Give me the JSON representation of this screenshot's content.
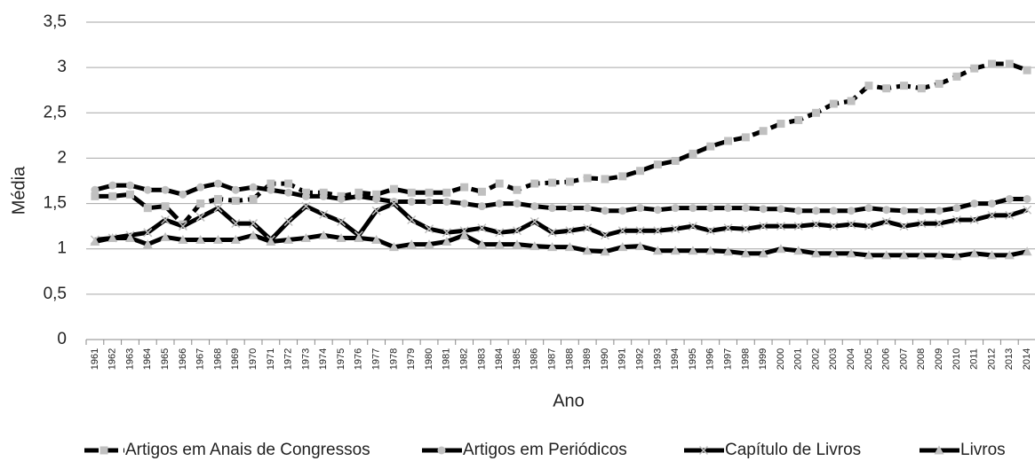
{
  "chart_data": {
    "type": "line",
    "x_label": "Ano",
    "y_label": "Média",
    "categories": [
      "1961",
      "1962",
      "1963",
      "1964",
      "1965",
      "1966",
      "1967",
      "1968",
      "1969",
      "1970",
      "1971",
      "1972",
      "1973",
      "1974",
      "1975",
      "1976",
      "1977",
      "1978",
      "1979",
      "1980",
      "1981",
      "1982",
      "1983",
      "1984",
      "1985",
      "1986",
      "1987",
      "1988",
      "1989",
      "1990",
      "1991",
      "1992",
      "1993",
      "1994",
      "1995",
      "1996",
      "1997",
      "1998",
      "1999",
      "2000",
      "2001",
      "2002",
      "2003",
      "2004",
      "2005",
      "2006",
      "2007",
      "2008",
      "2009",
      "2010",
      "2011",
      "2012",
      "2013",
      "2014"
    ],
    "series": [
      {
        "name": "Artigos em Anais de Congressos",
        "color": "#000000",
        "marker": "square",
        "marker_color": "#c0c0c0",
        "line_style": "dashed",
        "values": [
          1.58,
          1.58,
          1.6,
          1.45,
          1.47,
          1.27,
          1.5,
          1.55,
          1.53,
          1.55,
          1.72,
          1.72,
          1.62,
          1.62,
          1.58,
          1.62,
          1.6,
          1.66,
          1.62,
          1.62,
          1.62,
          1.68,
          1.63,
          1.72,
          1.65,
          1.72,
          1.73,
          1.74,
          1.78,
          1.77,
          1.8,
          1.86,
          1.93,
          1.97,
          2.05,
          2.13,
          2.19,
          2.23,
          2.3,
          2.38,
          2.42,
          2.5,
          2.6,
          2.63,
          2.8,
          2.77,
          2.8,
          2.77,
          2.82,
          2.9,
          2.99,
          3.04,
          3.04,
          2.97
        ]
      },
      {
        "name": "Artigos em Periódicos",
        "color": "#000000",
        "marker": "circle",
        "marker_color": "#c0c0c0",
        "line_style": "solid",
        "values": [
          1.65,
          1.7,
          1.7,
          1.65,
          1.65,
          1.6,
          1.68,
          1.72,
          1.65,
          1.68,
          1.65,
          1.62,
          1.58,
          1.58,
          1.55,
          1.58,
          1.55,
          1.52,
          1.52,
          1.52,
          1.52,
          1.5,
          1.47,
          1.5,
          1.5,
          1.47,
          1.45,
          1.45,
          1.45,
          1.42,
          1.42,
          1.45,
          1.43,
          1.45,
          1.45,
          1.45,
          1.45,
          1.45,
          1.44,
          1.44,
          1.42,
          1.42,
          1.42,
          1.42,
          1.45,
          1.43,
          1.42,
          1.42,
          1.42,
          1.45,
          1.5,
          1.5,
          1.55,
          1.55
        ]
      },
      {
        "name": "Capítulo de Livros",
        "color": "#000000",
        "marker": "x",
        "marker_color": "#c0c0c0",
        "line_style": "solid",
        "values": [
          1.1,
          1.12,
          1.15,
          1.18,
          1.32,
          1.25,
          1.35,
          1.45,
          1.28,
          1.28,
          1.1,
          1.3,
          1.47,
          1.38,
          1.3,
          1.15,
          1.42,
          1.5,
          1.32,
          1.22,
          1.18,
          1.2,
          1.23,
          1.18,
          1.2,
          1.3,
          1.18,
          1.2,
          1.23,
          1.15,
          1.2,
          1.2,
          1.2,
          1.22,
          1.25,
          1.2,
          1.23,
          1.22,
          1.25,
          1.25,
          1.25,
          1.27,
          1.25,
          1.27,
          1.25,
          1.3,
          1.25,
          1.28,
          1.28,
          1.32,
          1.32,
          1.37,
          1.37,
          1.43
        ]
      },
      {
        "name": "Livros",
        "color": "#000000",
        "marker": "triangle",
        "marker_color": "#c0c0c0",
        "line_style": "solid",
        "values": [
          1.08,
          1.12,
          1.12,
          1.05,
          1.13,
          1.1,
          1.1,
          1.1,
          1.1,
          1.15,
          1.08,
          1.1,
          1.12,
          1.15,
          1.12,
          1.12,
          1.1,
          1.02,
          1.05,
          1.05,
          1.08,
          1.15,
          1.05,
          1.05,
          1.05,
          1.03,
          1.02,
          1.02,
          0.98,
          0.97,
          1.02,
          1.03,
          0.98,
          0.98,
          0.98,
          0.98,
          0.97,
          0.95,
          0.95,
          1.0,
          0.98,
          0.95,
          0.95,
          0.95,
          0.93,
          0.93,
          0.93,
          0.93,
          0.93,
          0.92,
          0.95,
          0.93,
          0.93,
          0.97
        ]
      }
    ],
    "ylim": [
      0,
      3.5
    ],
    "yticks": [
      0,
      {
        "value": 0.5,
        "label": "0,5"
      },
      1,
      {
        "value": 1.5,
        "label": "1,5"
      },
      2,
      {
        "value": 2.5,
        "label": "2,5"
      },
      3,
      {
        "value": 3.5,
        "label": "3,5"
      }
    ],
    "grid": true,
    "legend": "bottom"
  }
}
